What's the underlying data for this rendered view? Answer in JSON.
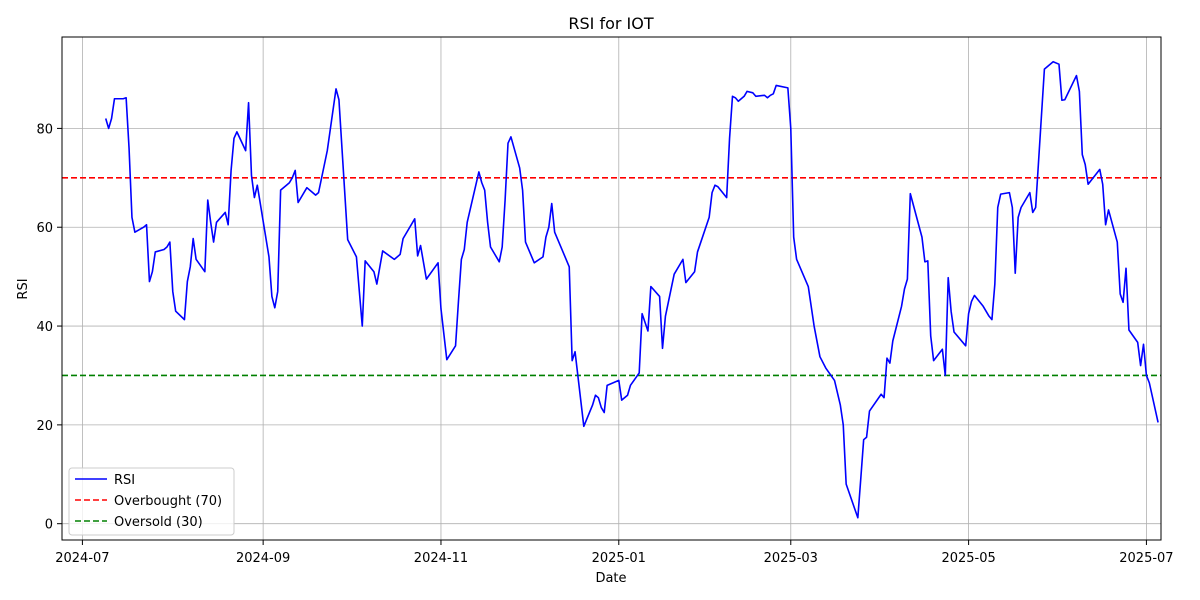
{
  "chart_data": {
    "type": "line",
    "title": "RSI for IOT",
    "xlabel": "Date",
    "ylabel": "RSI",
    "xlim": [
      "2024-06-24",
      "2025-07-06"
    ],
    "ylim": [
      -3.3,
      98.5
    ],
    "grid": true,
    "legend_position": "bottom-left",
    "x_ticks": [
      "2024-07",
      "2024-09",
      "2024-11",
      "2025-01",
      "2025-03",
      "2025-05",
      "2025-07"
    ],
    "y_ticks": [
      0,
      20,
      40,
      60,
      80
    ],
    "series": [
      {
        "name": "RSI",
        "color": "#0000ff",
        "points": [
          [
            "2024-07-09",
            82.0
          ],
          [
            "2024-07-10",
            80.0
          ],
          [
            "2024-07-11",
            82.0
          ],
          [
            "2024-07-12",
            86.0
          ],
          [
            "2024-07-15",
            86.0
          ],
          [
            "2024-07-16",
            86.2
          ],
          [
            "2024-07-17",
            76.0
          ],
          [
            "2024-07-18",
            62.0
          ],
          [
            "2024-07-19",
            59.0
          ],
          [
            "2024-07-22",
            60.0
          ],
          [
            "2024-07-23",
            60.5
          ],
          [
            "2024-07-24",
            49.0
          ],
          [
            "2024-07-25",
            51.0
          ],
          [
            "2024-07-26",
            55.0
          ],
          [
            "2024-07-29",
            55.5
          ],
          [
            "2024-07-30",
            56.0
          ],
          [
            "2024-07-31",
            57.0
          ],
          [
            "2024-08-01",
            47.0
          ],
          [
            "2024-08-02",
            43.0
          ],
          [
            "2024-08-05",
            41.3
          ],
          [
            "2024-08-06",
            49.0
          ],
          [
            "2024-08-07",
            52.0
          ],
          [
            "2024-08-08",
            57.7
          ],
          [
            "2024-08-09",
            53.5
          ],
          [
            "2024-08-12",
            51.0
          ],
          [
            "2024-08-13",
            65.5
          ],
          [
            "2024-08-14",
            61.0
          ],
          [
            "2024-08-15",
            57.0
          ],
          [
            "2024-08-16",
            61.0
          ],
          [
            "2024-08-19",
            63.0
          ],
          [
            "2024-08-20",
            60.5
          ],
          [
            "2024-08-21",
            71.5
          ],
          [
            "2024-08-22",
            78.0
          ],
          [
            "2024-08-23",
            79.3
          ],
          [
            "2024-08-26",
            75.5
          ],
          [
            "2024-08-27",
            85.2
          ],
          [
            "2024-08-28",
            70.5
          ],
          [
            "2024-08-29",
            66.0
          ],
          [
            "2024-08-30",
            68.5
          ],
          [
            "2024-09-03",
            54.0
          ],
          [
            "2024-09-04",
            46.0
          ],
          [
            "2024-09-05",
            43.7
          ],
          [
            "2024-09-06",
            47.0
          ],
          [
            "2024-09-07",
            67.5
          ],
          [
            "2024-09-09",
            68.5
          ],
          [
            "2024-09-10",
            69.0
          ],
          [
            "2024-09-11",
            70.0
          ],
          [
            "2024-09-12",
            71.5
          ],
          [
            "2024-09-13",
            65.0
          ],
          [
            "2024-09-16",
            68.0
          ],
          [
            "2024-09-18",
            67.0
          ],
          [
            "2024-09-19",
            66.5
          ],
          [
            "2024-09-20",
            67.0
          ],
          [
            "2024-09-23",
            75.5
          ],
          [
            "2024-09-26",
            88.0
          ],
          [
            "2024-09-27",
            85.8
          ],
          [
            "2024-09-30",
            57.5
          ],
          [
            "2024-10-03",
            54.0
          ],
          [
            "2024-10-05",
            40.0
          ],
          [
            "2024-10-06",
            53.2
          ],
          [
            "2024-10-09",
            51.0
          ],
          [
            "2024-10-10",
            48.5
          ],
          [
            "2024-10-12",
            55.2
          ],
          [
            "2024-10-16",
            53.5
          ],
          [
            "2024-10-18",
            54.5
          ],
          [
            "2024-10-19",
            57.7
          ],
          [
            "2024-10-23",
            61.7
          ],
          [
            "2024-10-24",
            54.2
          ],
          [
            "2024-10-25",
            56.3
          ],
          [
            "2024-10-27",
            49.5
          ],
          [
            "2024-10-31",
            52.8
          ],
          [
            "2024-11-01",
            43.5
          ],
          [
            "2024-11-03",
            33.2
          ],
          [
            "2024-11-06",
            36.0
          ],
          [
            "2024-11-07",
            45.0
          ],
          [
            "2024-11-08",
            53.5
          ],
          [
            "2024-11-09",
            55.5
          ],
          [
            "2024-11-10",
            61.0
          ],
          [
            "2024-11-14",
            71.2
          ],
          [
            "2024-11-15",
            69.0
          ],
          [
            "2024-11-16",
            67.5
          ],
          [
            "2024-11-17",
            61.0
          ],
          [
            "2024-11-18",
            56.0
          ],
          [
            "2024-11-21",
            53.0
          ],
          [
            "2024-11-22",
            56.0
          ],
          [
            "2024-11-23",
            65.5
          ],
          [
            "2024-11-24",
            77.0
          ],
          [
            "2024-11-25",
            78.3
          ],
          [
            "2024-11-28",
            72.0
          ],
          [
            "2024-11-29",
            67.5
          ],
          [
            "2024-11-30",
            57.0
          ],
          [
            "2024-12-03",
            52.8
          ],
          [
            "2024-12-06",
            54.0
          ],
          [
            "2024-12-07",
            58.0
          ],
          [
            "2024-12-08",
            60.0
          ],
          [
            "2024-12-09",
            64.8
          ],
          [
            "2024-12-10",
            59.0
          ],
          [
            "2024-12-15",
            52.0
          ],
          [
            "2024-12-16",
            33.0
          ],
          [
            "2024-12-17",
            34.8
          ],
          [
            "2024-12-20",
            19.7
          ],
          [
            "2024-12-23",
            24.0
          ],
          [
            "2024-12-24",
            26.0
          ],
          [
            "2024-12-25",
            25.5
          ],
          [
            "2024-12-26",
            23.5
          ],
          [
            "2024-12-27",
            22.5
          ],
          [
            "2024-12-28",
            28.0
          ],
          [
            "2025-01-01",
            29.0
          ],
          [
            "2025-01-02",
            25.0
          ],
          [
            "2025-01-04",
            26.0
          ],
          [
            "2025-01-05",
            28.0
          ],
          [
            "2025-01-08",
            30.5
          ],
          [
            "2025-01-09",
            42.5
          ],
          [
            "2025-01-11",
            39.0
          ],
          [
            "2025-01-12",
            48.0
          ],
          [
            "2025-01-15",
            46.0
          ],
          [
            "2025-01-16",
            35.5
          ],
          [
            "2025-01-17",
            42.0
          ],
          [
            "2025-01-20",
            50.5
          ],
          [
            "2025-01-23",
            53.5
          ],
          [
            "2025-01-24",
            48.8
          ],
          [
            "2025-01-27",
            51.0
          ],
          [
            "2025-01-28",
            55.0
          ],
          [
            "2025-02-01",
            62.0
          ],
          [
            "2025-02-02",
            67.0
          ],
          [
            "2025-02-03",
            68.5
          ],
          [
            "2025-02-04",
            68.2
          ],
          [
            "2025-02-07",
            66.0
          ],
          [
            "2025-02-08",
            78.0
          ],
          [
            "2025-02-09",
            86.5
          ],
          [
            "2025-02-10",
            86.2
          ],
          [
            "2025-02-11",
            85.5
          ],
          [
            "2025-02-13",
            86.5
          ],
          [
            "2025-02-14",
            87.5
          ],
          [
            "2025-02-16",
            87.2
          ],
          [
            "2025-02-17",
            86.5
          ],
          [
            "2025-02-20",
            86.7
          ],
          [
            "2025-02-21",
            86.2
          ],
          [
            "2025-02-22",
            86.7
          ],
          [
            "2025-02-23",
            87.0
          ],
          [
            "2025-02-24",
            88.7
          ],
          [
            "2025-02-28",
            88.2
          ],
          [
            "2025-03-01",
            80.0
          ],
          [
            "2025-03-02",
            58.0
          ],
          [
            "2025-03-03",
            53.5
          ],
          [
            "2025-03-07",
            48.0
          ],
          [
            "2025-03-09",
            40.0
          ],
          [
            "2025-03-11",
            33.8
          ],
          [
            "2025-03-13",
            31.5
          ],
          [
            "2025-03-16",
            29.0
          ],
          [
            "2025-03-18",
            24.0
          ],
          [
            "2025-03-19",
            20.0
          ],
          [
            "2025-03-20",
            8.0
          ],
          [
            "2025-03-24",
            1.2
          ],
          [
            "2025-03-25",
            9.0
          ],
          [
            "2025-03-26",
            17.0
          ],
          [
            "2025-03-27",
            17.5
          ],
          [
            "2025-03-28",
            22.8
          ],
          [
            "2025-04-01",
            26.2
          ],
          [
            "2025-04-02",
            25.5
          ],
          [
            "2025-04-03",
            33.5
          ],
          [
            "2025-04-04",
            32.5
          ],
          [
            "2025-04-05",
            37.0
          ],
          [
            "2025-04-08",
            44.0
          ],
          [
            "2025-04-09",
            47.5
          ],
          [
            "2025-04-10",
            49.5
          ],
          [
            "2025-04-11",
            66.8
          ],
          [
            "2025-04-15",
            58.0
          ],
          [
            "2025-04-16",
            53.0
          ],
          [
            "2025-04-17",
            53.2
          ],
          [
            "2025-04-18",
            38.0
          ],
          [
            "2025-04-19",
            33.0
          ],
          [
            "2025-04-22",
            35.3
          ],
          [
            "2025-04-23",
            30.0
          ],
          [
            "2025-04-24",
            49.8
          ],
          [
            "2025-04-25",
            43.0
          ],
          [
            "2025-04-26",
            38.8
          ],
          [
            "2025-04-30",
            36.0
          ],
          [
            "2025-05-01",
            42.5
          ],
          [
            "2025-05-02",
            45.0
          ],
          [
            "2025-05-03",
            46.2
          ],
          [
            "2025-05-06",
            44.0
          ],
          [
            "2025-05-08",
            42.0
          ],
          [
            "2025-05-09",
            41.3
          ],
          [
            "2025-05-10",
            48.5
          ],
          [
            "2025-05-11",
            64.0
          ],
          [
            "2025-05-12",
            66.7
          ],
          [
            "2025-05-15",
            67.0
          ],
          [
            "2025-05-16",
            64.0
          ],
          [
            "2025-05-17",
            50.7
          ],
          [
            "2025-05-18",
            62.0
          ],
          [
            "2025-05-19",
            64.0
          ],
          [
            "2025-05-22",
            67.0
          ],
          [
            "2025-05-23",
            63.0
          ],
          [
            "2025-05-24",
            64.0
          ],
          [
            "2025-05-27",
            92.0
          ],
          [
            "2025-05-30",
            93.5
          ],
          [
            "2025-06-01",
            93.0
          ],
          [
            "2025-06-02",
            85.7
          ],
          [
            "2025-06-03",
            85.8
          ],
          [
            "2025-06-07",
            90.7
          ],
          [
            "2025-06-08",
            87.5
          ],
          [
            "2025-06-09",
            74.7
          ],
          [
            "2025-06-10",
            72.7
          ],
          [
            "2025-06-11",
            68.7
          ],
          [
            "2025-06-15",
            71.7
          ],
          [
            "2025-06-16",
            68.7
          ],
          [
            "2025-06-17",
            60.5
          ],
          [
            "2025-06-18",
            63.5
          ],
          [
            "2025-06-21",
            57.0
          ],
          [
            "2025-06-22",
            46.5
          ],
          [
            "2025-06-23",
            44.8
          ],
          [
            "2025-06-24",
            51.7
          ],
          [
            "2025-06-25",
            39.2
          ],
          [
            "2025-06-28",
            36.7
          ],
          [
            "2025-06-29",
            32.0
          ],
          [
            "2025-06-30",
            36.3
          ],
          [
            "2025-07-01",
            30.0
          ],
          [
            "2025-07-02",
            28.5
          ],
          [
            "2025-07-05",
            20.5
          ]
        ]
      }
    ],
    "reference_lines": [
      {
        "name": "Overbought (70)",
        "value": 70,
        "color": "#ff0000",
        "style": "dashed"
      },
      {
        "name": "Oversold (30)",
        "value": 30,
        "color": "#008000",
        "style": "dashed"
      }
    ]
  }
}
